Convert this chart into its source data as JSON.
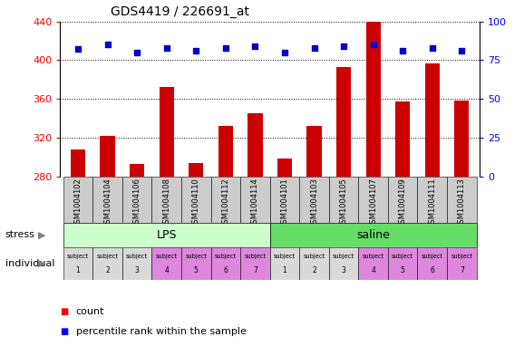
{
  "title": "GDS4419 / 226691_at",
  "samples": [
    "GSM1004102",
    "GSM1004104",
    "GSM1004106",
    "GSM1004108",
    "GSM1004110",
    "GSM1004112",
    "GSM1004114",
    "GSM1004101",
    "GSM1004103",
    "GSM1004105",
    "GSM1004107",
    "GSM1004109",
    "GSM1004111",
    "GSM1004113"
  ],
  "counts": [
    308,
    322,
    293,
    372,
    294,
    332,
    345,
    298,
    332,
    393,
    440,
    357,
    397,
    358
  ],
  "percentiles": [
    82,
    85,
    80,
    83,
    81,
    83,
    84,
    80,
    83,
    84,
    85,
    81,
    83,
    81
  ],
  "subjects": [
    1,
    2,
    3,
    4,
    5,
    6,
    7,
    1,
    2,
    3,
    4,
    5,
    6,
    7
  ],
  "ylim_left": [
    280,
    440
  ],
  "ylim_right": [
    0,
    100
  ],
  "yticks_left": [
    280,
    320,
    360,
    400,
    440
  ],
  "yticks_right": [
    0,
    25,
    50,
    75,
    100
  ],
  "bar_color": "#cc0000",
  "dot_color": "#0000cc",
  "lps_color": "#ccffcc",
  "saline_color": "#66dd66",
  "subject_colors": [
    "#d9d9d9",
    "#d9d9d9",
    "#d9d9d9",
    "#cc99cc",
    "#cc99cc",
    "#cc99cc",
    "#cc99cc",
    "#d9d9d9",
    "#d9d9d9",
    "#d9d9d9",
    "#cc99cc",
    "#cc99cc",
    "#cc99cc",
    "#cc99cc"
  ],
  "bar_width": 0.5,
  "xticklabel_bg": "#cccccc"
}
